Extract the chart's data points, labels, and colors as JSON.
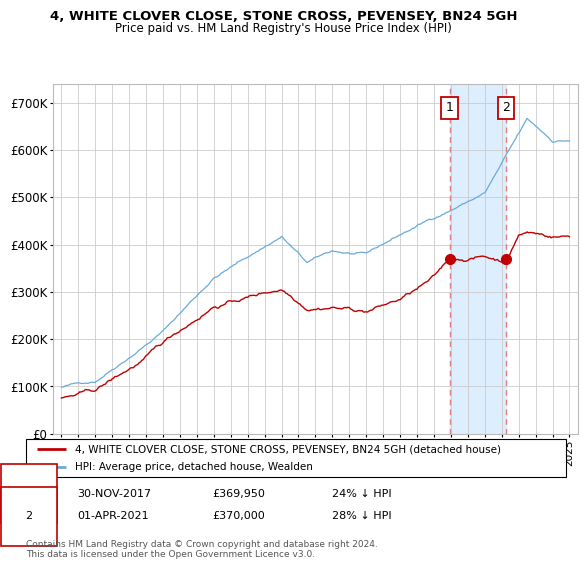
{
  "title": "4, WHITE CLOVER CLOSE, STONE CROSS, PEVENSEY, BN24 5GH",
  "subtitle": "Price paid vs. HM Land Registry's House Price Index (HPI)",
  "legend_label_red": "4, WHITE CLOVER CLOSE, STONE CROSS, PEVENSEY, BN24 5GH (detached house)",
  "legend_label_blue": "HPI: Average price, detached house, Wealden",
  "marker1_date": "30-NOV-2017",
  "marker1_price": "£369,950",
  "marker1_pct": "24% ↓ HPI",
  "marker2_date": "01-APR-2021",
  "marker2_price": "£370,000",
  "marker2_pct": "28% ↓ HPI",
  "footer": "Contains HM Land Registry data © Crown copyright and database right 2024.\nThis data is licensed under the Open Government Licence v3.0.",
  "marker1_x": 2017.917,
  "marker2_x": 2021.25,
  "marker1_y": 369950,
  "marker2_y": 370000,
  "yticks": [
    0,
    100000,
    200000,
    300000,
    400000,
    500000,
    600000,
    700000
  ],
  "yticklabels": [
    "£0",
    "£100K",
    "£200K",
    "£300K",
    "£400K",
    "£500K",
    "£600K",
    "£700K"
  ],
  "ylim": [
    0,
    740000
  ],
  "xlim_start": 1994.5,
  "xlim_end": 2025.5,
  "hpi_color": "#6aabdb",
  "prop_color": "#c00000",
  "shade_color": "#ddeeff",
  "dashed_color": "#e08080"
}
